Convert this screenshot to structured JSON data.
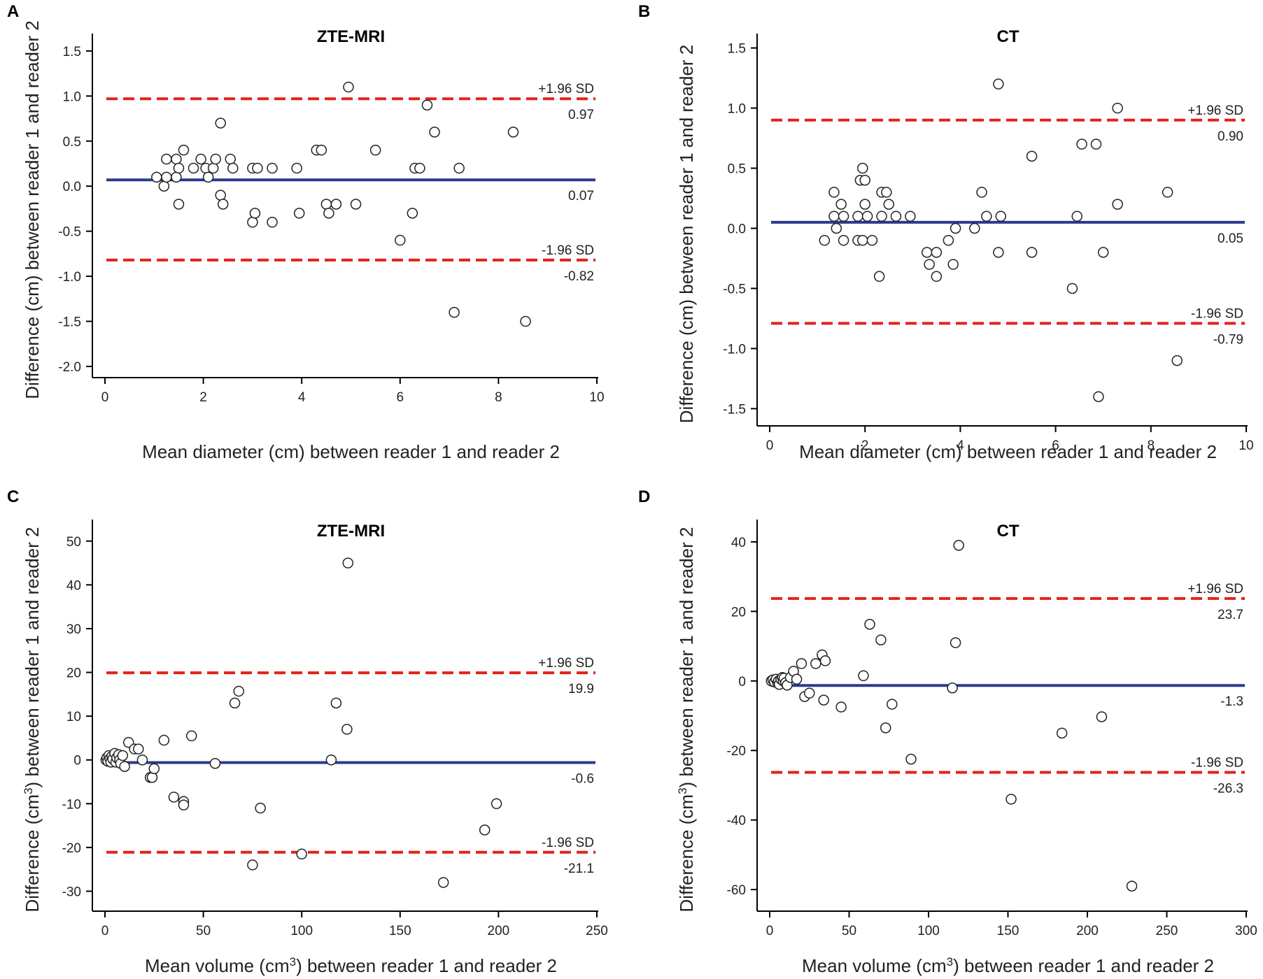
{
  "figure": {
    "x_title_suffix": " between reader 1 and reader 2",
    "y_title_suffix": " between reader 1 and reader 2"
  },
  "chart_data": [
    {
      "panel": "A",
      "type": "scatter",
      "title": "ZTE-MRI",
      "xlabel": "Mean diameter (cm) between reader 1 and reader 2",
      "ylabel": "Difference (cm) between reader 1 and reader 2",
      "xlim": [
        0,
        10
      ],
      "ylim": [
        -2.0,
        1.6
      ],
      "xticks": [
        0,
        2,
        4,
        6,
        8,
        10
      ],
      "xtick_labels": [
        "0",
        "2",
        "4",
        "6",
        "8",
        "10"
      ],
      "yticks": [
        -2.0,
        -1.5,
        -1.0,
        -0.5,
        0.0,
        0.5,
        1.0,
        1.5
      ],
      "ytick_labels": [
        "-2.0",
        "-1.5",
        "-1.0",
        "-0.5",
        "0.0",
        "0.5",
        "1.0",
        "1.5"
      ],
      "mean": {
        "value": 0.07,
        "label": "0.07"
      },
      "upper": {
        "value": 0.97,
        "label": "0.97",
        "sd_label": "+1.96 SD"
      },
      "lower": {
        "value": -0.82,
        "label": "-0.82",
        "sd_label": "-1.96 SD"
      },
      "points": [
        [
          1.05,
          0.1
        ],
        [
          1.2,
          0.0
        ],
        [
          1.25,
          0.3
        ],
        [
          1.25,
          0.1
        ],
        [
          1.45,
          0.3
        ],
        [
          1.45,
          0.1
        ],
        [
          1.5,
          0.2
        ],
        [
          1.5,
          -0.2
        ],
        [
          1.6,
          0.4
        ],
        [
          1.8,
          0.2
        ],
        [
          1.95,
          0.3
        ],
        [
          2.05,
          0.2
        ],
        [
          2.1,
          0.1
        ],
        [
          2.2,
          0.2
        ],
        [
          2.25,
          0.3
        ],
        [
          2.35,
          0.7
        ],
        [
          2.35,
          -0.1
        ],
        [
          2.4,
          -0.2
        ],
        [
          2.55,
          0.3
        ],
        [
          2.6,
          0.2
        ],
        [
          3.0,
          0.2
        ],
        [
          3.0,
          -0.4
        ],
        [
          3.05,
          -0.3
        ],
        [
          3.1,
          0.2
        ],
        [
          3.4,
          0.2
        ],
        [
          3.4,
          -0.4
        ],
        [
          3.9,
          0.2
        ],
        [
          3.95,
          -0.3
        ],
        [
          4.3,
          0.4
        ],
        [
          4.4,
          0.4
        ],
        [
          4.5,
          -0.2
        ],
        [
          4.55,
          -0.3
        ],
        [
          4.7,
          -0.2
        ],
        [
          4.95,
          1.1
        ],
        [
          5.1,
          -0.2
        ],
        [
          5.5,
          0.4
        ],
        [
          6.0,
          -0.6
        ],
        [
          6.25,
          -0.3
        ],
        [
          6.3,
          0.2
        ],
        [
          6.4,
          0.2
        ],
        [
          6.55,
          0.9
        ],
        [
          6.7,
          0.6
        ],
        [
          7.1,
          -1.4
        ],
        [
          7.2,
          0.2
        ],
        [
          8.3,
          0.6
        ],
        [
          8.55,
          -1.5
        ]
      ]
    },
    {
      "panel": "B",
      "type": "scatter",
      "title": "CT",
      "xlabel": "Mean diameter (cm) between reader 1 and reader 2",
      "ylabel": "Difference (cm) between reader 1 and reader 2",
      "xlim": [
        0,
        10
      ],
      "ylim": [
        -1.55,
        1.55
      ],
      "xticks": [
        0,
        2,
        4,
        6,
        8,
        10
      ],
      "xtick_labels": [
        "0",
        "2",
        "4",
        "6",
        "8",
        "10"
      ],
      "yticks": [
        -1.5,
        -1.0,
        -0.5,
        0.0,
        0.5,
        1.0,
        1.5
      ],
      "ytick_labels": [
        "-1.5",
        "-1.0",
        "-0.5",
        "0.0",
        "0.5",
        "1.0",
        "1.5"
      ],
      "mean": {
        "value": 0.05,
        "label": "0.05"
      },
      "upper": {
        "value": 0.9,
        "label": "0.90",
        "sd_label": "+1.96 SD"
      },
      "lower": {
        "value": -0.79,
        "label": "-0.79",
        "sd_label": "-1.96 SD"
      },
      "points": [
        [
          1.15,
          -0.1
        ],
        [
          1.35,
          0.3
        ],
        [
          1.35,
          0.1
        ],
        [
          1.4,
          0.0
        ],
        [
          1.5,
          0.2
        ],
        [
          1.55,
          0.1
        ],
        [
          1.55,
          -0.1
        ],
        [
          1.85,
          0.1
        ],
        [
          1.85,
          -0.1
        ],
        [
          1.9,
          0.4
        ],
        [
          1.95,
          0.5
        ],
        [
          1.95,
          -0.1
        ],
        [
          2.0,
          0.4
        ],
        [
          2.0,
          0.2
        ],
        [
          2.05,
          0.1
        ],
        [
          2.15,
          -0.1
        ],
        [
          2.3,
          -0.4
        ],
        [
          2.35,
          0.3
        ],
        [
          2.35,
          0.1
        ],
        [
          2.45,
          0.3
        ],
        [
          2.5,
          0.2
        ],
        [
          2.65,
          0.1
        ],
        [
          2.95,
          0.1
        ],
        [
          3.3,
          -0.2
        ],
        [
          3.35,
          -0.3
        ],
        [
          3.5,
          -0.2
        ],
        [
          3.5,
          -0.4
        ],
        [
          3.75,
          -0.1
        ],
        [
          3.85,
          -0.3
        ],
        [
          3.9,
          0.0
        ],
        [
          4.3,
          0.0
        ],
        [
          4.45,
          0.3
        ],
        [
          4.55,
          0.1
        ],
        [
          4.8,
          1.2
        ],
        [
          4.8,
          -0.2
        ],
        [
          4.85,
          0.1
        ],
        [
          5.5,
          0.6
        ],
        [
          5.5,
          -0.2
        ],
        [
          6.35,
          -0.5
        ],
        [
          6.45,
          0.1
        ],
        [
          6.55,
          0.7
        ],
        [
          6.85,
          0.7
        ],
        [
          6.9,
          -1.4
        ],
        [
          7.0,
          -0.2
        ],
        [
          7.3,
          1.0
        ],
        [
          7.3,
          0.2
        ],
        [
          8.35,
          0.3
        ],
        [
          8.55,
          -1.1
        ]
      ]
    },
    {
      "panel": "C",
      "type": "scatter",
      "title": "ZTE-MRI",
      "xlabel_pre": "Mean volume (cm",
      "xlabel_sup": "3",
      "xlabel_post": ") between reader 1 and reader 2",
      "ylabel_pre": "Difference (cm",
      "ylabel_sup": "3",
      "ylabel_post": ") between reader 1 and reader 2",
      "xlim": [
        0,
        250
      ],
      "ylim": [
        -32,
        53
      ],
      "xticks": [
        0,
        50,
        100,
        150,
        200,
        250
      ],
      "xtick_labels": [
        "0",
        "50",
        "100",
        "150",
        "200",
        "250"
      ],
      "yticks": [
        -30,
        -20,
        -10,
        0,
        10,
        20,
        30,
        40,
        50
      ],
      "ytick_labels": [
        "-30",
        "-20",
        "-10",
        "0",
        "10",
        "20",
        "30",
        "40",
        "50"
      ],
      "mean": {
        "value": -0.6,
        "label": "-0.6"
      },
      "upper": {
        "value": 19.9,
        "label": "19.9",
        "sd_label": "+1.96 SD"
      },
      "lower": {
        "value": -21.1,
        "label": "-21.1",
        "sd_label": "-1.96 SD"
      },
      "points": [
        [
          0.5,
          0
        ],
        [
          1,
          0.5
        ],
        [
          1.5,
          -0.3
        ],
        [
          2,
          1
        ],
        [
          2.5,
          0.3
        ],
        [
          3,
          -0.5
        ],
        [
          3.5,
          0.8
        ],
        [
          4,
          0.2
        ],
        [
          5,
          1.5
        ],
        [
          5.5,
          -0.5
        ],
        [
          6,
          0.5
        ],
        [
          7,
          1.2
        ],
        [
          7.5,
          0
        ],
        [
          8,
          -0.8
        ],
        [
          9,
          1
        ],
        [
          10,
          -1.5
        ],
        [
          12,
          4
        ],
        [
          15,
          2.5
        ],
        [
          17,
          2.5
        ],
        [
          19,
          0
        ],
        [
          23,
          -4
        ],
        [
          24,
          -4
        ],
        [
          25,
          -2
        ],
        [
          30,
          4.5
        ],
        [
          35,
          -8.5
        ],
        [
          40,
          -9.5
        ],
        [
          40,
          -10.3
        ],
        [
          44,
          5.5
        ],
        [
          56,
          -0.8
        ],
        [
          66,
          13
        ],
        [
          68,
          15.7
        ],
        [
          75,
          -24
        ],
        [
          79,
          -11
        ],
        [
          100,
          -21.5
        ],
        [
          115,
          0
        ],
        [
          117.5,
          13
        ],
        [
          123,
          7
        ],
        [
          123.5,
          45
        ],
        [
          172,
          -28
        ],
        [
          193,
          -16
        ],
        [
          199,
          -10
        ]
      ]
    },
    {
      "panel": "D",
      "type": "scatter",
      "title": "CT",
      "xlabel_pre": "Mean volume (cm",
      "xlabel_sup": "3",
      "xlabel_post": ") between reader 1 and reader 2",
      "ylabel_pre": "Difference (cm",
      "ylabel_sup": "3",
      "ylabel_post": ") between reader 1 and reader 2",
      "xlim": [
        0,
        300
      ],
      "ylim": [
        -63,
        44
      ],
      "xticks": [
        0,
        50,
        100,
        150,
        200,
        250,
        300
      ],
      "xtick_labels": [
        "0",
        "50",
        "100",
        "150",
        "200",
        "250",
        "300"
      ],
      "yticks": [
        -60,
        -40,
        -20,
        0,
        20,
        40
      ],
      "ytick_labels": [
        "-60",
        "-40",
        "-20",
        "0",
        "20",
        "40"
      ],
      "mean": {
        "value": -1.3,
        "label": "-1.3"
      },
      "upper": {
        "value": 23.7,
        "label": "23.7",
        "sd_label": "+1.96 SD"
      },
      "lower": {
        "value": -26.3,
        "label": "-26.3",
        "sd_label": "-1.96 SD"
      },
      "points": [
        [
          1,
          0
        ],
        [
          2,
          0.3
        ],
        [
          3,
          -0.3
        ],
        [
          4,
          0.5
        ],
        [
          5,
          -0.5
        ],
        [
          5.5,
          0
        ],
        [
          6,
          -1
        ],
        [
          7,
          0.5
        ],
        [
          8,
          1
        ],
        [
          8.5,
          0
        ],
        [
          9,
          0.8
        ],
        [
          10,
          -0.5
        ],
        [
          11,
          -1.2
        ],
        [
          13,
          1
        ],
        [
          15,
          2.8
        ],
        [
          17,
          0.5
        ],
        [
          20,
          5
        ],
        [
          22,
          -4.5
        ],
        [
          25,
          -3.5
        ],
        [
          29,
          5
        ],
        [
          33,
          7.5
        ],
        [
          35,
          5.8
        ],
        [
          34,
          -5.5
        ],
        [
          45,
          -7.5
        ],
        [
          59,
          1.5
        ],
        [
          63,
          16.3
        ],
        [
          70,
          11.8
        ],
        [
          73,
          -13.5
        ],
        [
          77,
          -6.7
        ],
        [
          89,
          -22.5
        ],
        [
          115,
          -2
        ],
        [
          117,
          11
        ],
        [
          119,
          39
        ],
        [
          152,
          -34
        ],
        [
          184,
          -15
        ],
        [
          209,
          -10.3
        ],
        [
          228,
          -59
        ]
      ]
    }
  ]
}
